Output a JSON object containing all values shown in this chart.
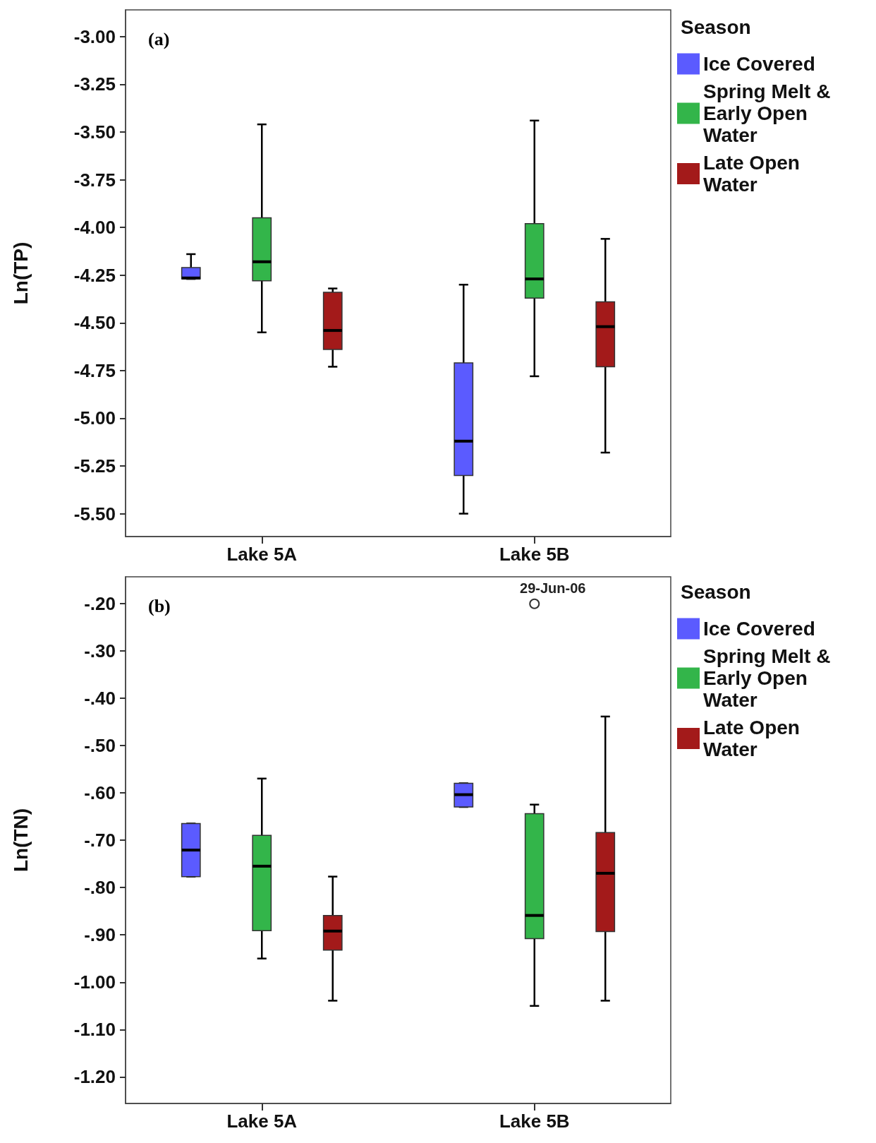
{
  "chart_data": [
    {
      "type": "box",
      "categories": [
        "Lake 5A",
        "Lake 5B"
      ],
      "ylabel": "Ln(TP)",
      "legend_title": "Season",
      "legend": "top right",
      "ylim": [
        -5.62,
        -2.86
      ],
      "yticks": [
        {
          "value": -5.5,
          "label": "-5.50"
        },
        {
          "value": -5.25,
          "label": "-5.25"
        },
        {
          "value": -5.0,
          "label": "-5.00"
        },
        {
          "value": -4.75,
          "label": "-4.75"
        },
        {
          "value": -4.5,
          "label": "-4.50"
        },
        {
          "value": -4.25,
          "label": "-4.25"
        },
        {
          "value": -4.0,
          "label": "-4.00"
        },
        {
          "value": -3.75,
          "label": "-3.75"
        },
        {
          "value": -3.5,
          "label": "-3.50"
        },
        {
          "value": -3.25,
          "label": "-3.25"
        },
        {
          "value": -3.0,
          "label": "-3.00"
        }
      ],
      "annotations": [
        "(a)"
      ],
      "series": [
        {
          "name": "Ice Covered",
          "color": "#5b5bff",
          "boxes": [
            {
              "low": -4.27,
              "q1": -4.27,
              "median": -4.265,
              "q3": -4.21,
              "high": -4.14
            },
            {
              "low": -5.5,
              "q1": -5.3,
              "median": -5.12,
              "q3": -4.71,
              "high": -4.3
            }
          ]
        },
        {
          "name": "Spring Melt & Early Open Water",
          "color": "#33b54a",
          "boxes": [
            {
              "low": -4.55,
              "q1": -4.28,
              "median": -4.18,
              "q3": -3.95,
              "high": -3.46
            },
            {
              "low": -4.78,
              "q1": -4.37,
              "median": -4.27,
              "q3": -3.98,
              "high": -3.44
            }
          ]
        },
        {
          "name": "Late Open Water",
          "color": "#a31a1a",
          "boxes": [
            {
              "low": -4.73,
              "q1": -4.64,
              "median": -4.54,
              "q3": -4.34,
              "high": -4.32
            },
            {
              "low": -5.18,
              "q1": -4.73,
              "median": -4.52,
              "q3": -4.39,
              "high": -4.06
            }
          ]
        }
      ]
    },
    {
      "type": "box",
      "categories": [
        "Lake 5A",
        "Lake 5B"
      ],
      "ylabel": "Ln(TN)",
      "legend_title": "Season",
      "legend": "top right",
      "ylim": [
        -1.256,
        -0.144
      ],
      "yticks": [
        {
          "value": -1.2,
          "label": "-1.20"
        },
        {
          "value": -1.1,
          "label": "-1.10"
        },
        {
          "value": -1.0,
          "label": "-1.00"
        },
        {
          "value": -0.9,
          "label": "-.90"
        },
        {
          "value": -0.8,
          "label": "-.80"
        },
        {
          "value": -0.7,
          "label": "-.70"
        },
        {
          "value": -0.6,
          "label": "-.60"
        },
        {
          "value": -0.5,
          "label": "-.50"
        },
        {
          "value": -0.4,
          "label": "-.40"
        },
        {
          "value": -0.3,
          "label": "-.30"
        },
        {
          "value": -0.2,
          "label": "-.20"
        }
      ],
      "annotations": [
        "(b)",
        "29-Jun-06"
      ],
      "series": [
        {
          "name": "Ice Covered",
          "color": "#5b5bff",
          "boxes": [
            {
              "low": -0.777,
              "q1": -0.777,
              "median": -0.721,
              "q3": -0.665,
              "high": -0.665
            },
            {
              "low": -0.63,
              "q1": -0.63,
              "median": -0.604,
              "q3": -0.58,
              "high": -0.58
            }
          ]
        },
        {
          "name": "Spring Melt & Early Open Water",
          "color": "#33b54a",
          "boxes": [
            {
              "low": -0.95,
              "q1": -0.891,
              "median": -0.755,
              "q3": -0.69,
              "high": -0.57
            },
            {
              "low": -1.05,
              "q1": -0.908,
              "median": -0.859,
              "q3": -0.644,
              "high": -0.625,
              "outliers": [
                -0.201
              ]
            }
          ]
        },
        {
          "name": "Late Open Water",
          "color": "#a31a1a",
          "boxes": [
            {
              "low": -1.039,
              "q1": -0.932,
              "median": -0.892,
              "q3": -0.859,
              "high": -0.777
            },
            {
              "low": -1.039,
              "q1": -0.893,
              "median": -0.77,
              "q3": -0.684,
              "high": -0.439
            }
          ]
        }
      ]
    }
  ]
}
